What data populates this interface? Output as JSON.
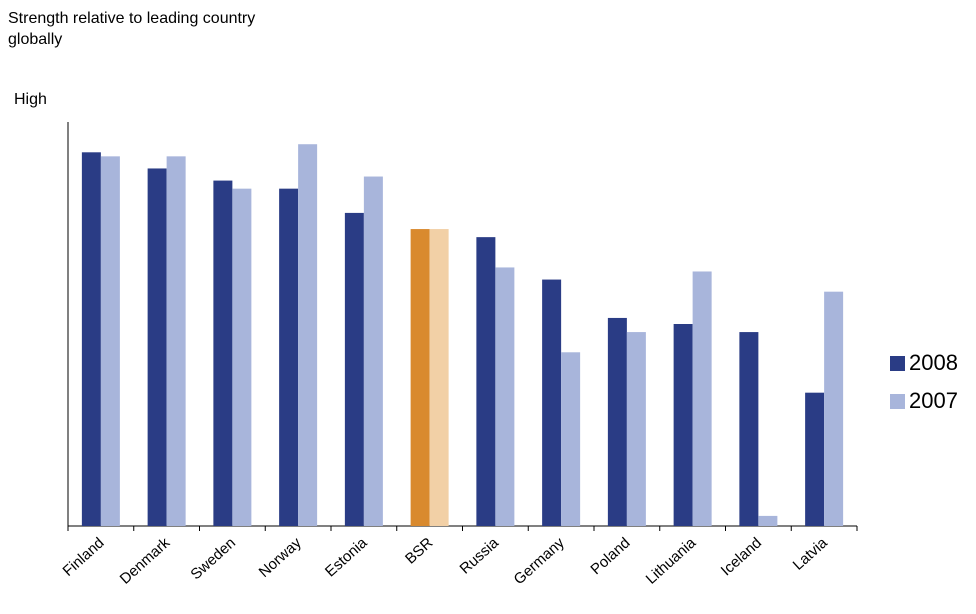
{
  "chart_data": {
    "type": "bar",
    "ylabel": "Strength relative to leading country globally",
    "ymax_label": "High",
    "ylim": [
      0,
      100
    ],
    "categories": [
      "Finland",
      "Denmark",
      "Sweden",
      "Norway",
      "Estonia",
      "BSR",
      "Russia",
      "Germany",
      "Poland",
      "Lithuania",
      "Iceland",
      "Latvia"
    ],
    "series": [
      {
        "name": "2008",
        "color": "#2a3c85",
        "values": [
          92.5,
          88.5,
          85.5,
          83.5,
          77.5,
          73.5,
          71.5,
          61,
          51.5,
          50,
          48,
          33
        ]
      },
      {
        "name": "2007",
        "color": "#a8b5db",
        "values": [
          91.5,
          91.5,
          83.5,
          94.5,
          86.5,
          73.5,
          64,
          43,
          48,
          63,
          2.5,
          58
        ]
      }
    ],
    "highlight": {
      "category": "BSR",
      "colors": [
        "#d98a2e",
        "#f2d0a6"
      ]
    },
    "legend_position": "right",
    "grid": false
  }
}
